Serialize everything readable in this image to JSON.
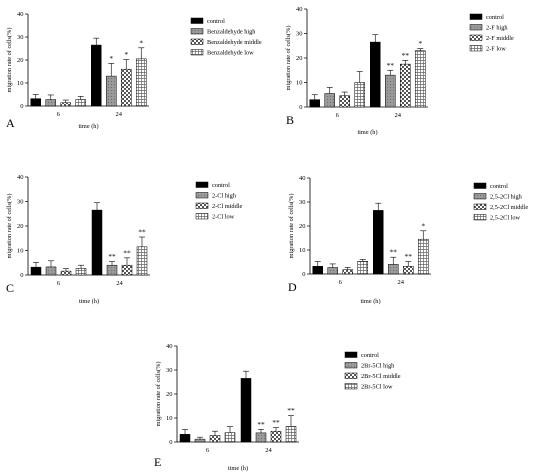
{
  "chart_data": [
    {
      "type": "bar",
      "panel_label": "A",
      "categories": [
        "6",
        "24"
      ],
      "xlabel": "time (h)",
      "ylabel": "migration rate of cells(%)",
      "ylim": [
        0,
        40
      ],
      "yticks": [
        "0",
        "10",
        "20",
        "30",
        "40"
      ],
      "legend_position": "right",
      "series": [
        {
          "name": "control",
          "values": [
            3.2,
            26.5
          ],
          "errors": [
            1.8,
            3.0
          ],
          "sig": [
            "",
            ""
          ]
        },
        {
          "name": "Benzaldehyde high",
          "values": [
            2.8,
            13.0
          ],
          "errors": [
            2.0,
            5.5
          ],
          "sig": [
            "",
            "*"
          ]
        },
        {
          "name": "Benzaldehyde middle",
          "values": [
            1.4,
            16.0
          ],
          "errors": [
            1.2,
            4.2
          ],
          "sig": [
            "",
            "*"
          ]
        },
        {
          "name": "Benzaldehyde low",
          "values": [
            2.8,
            20.5
          ],
          "errors": [
            1.4,
            4.8
          ],
          "sig": [
            "",
            "*"
          ]
        }
      ]
    },
    {
      "type": "bar",
      "panel_label": "B",
      "categories": [
        "6",
        "24"
      ],
      "xlabel": "time (h)",
      "ylabel": "migration rate of cells(%)",
      "ylim": [
        0,
        40
      ],
      "yticks": [
        "0",
        "10",
        "20",
        "30",
        "40"
      ],
      "legend_position": "right",
      "series": [
        {
          "name": "control",
          "values": [
            3.0,
            26.5
          ],
          "errors": [
            2.0,
            3.0
          ],
          "sig": [
            "",
            ""
          ]
        },
        {
          "name": "2-F high",
          "values": [
            5.5,
            13.0
          ],
          "errors": [
            2.5,
            2.0
          ],
          "sig": [
            "",
            "**"
          ]
        },
        {
          "name": "2-F middle",
          "values": [
            4.6,
            17.5
          ],
          "errors": [
            1.5,
            1.5
          ],
          "sig": [
            "",
            "**"
          ]
        },
        {
          "name": "2-F low",
          "values": [
            10.0,
            23.0
          ],
          "errors": [
            4.5,
            0.8
          ],
          "sig": [
            "",
            "*"
          ]
        }
      ]
    },
    {
      "type": "bar",
      "panel_label": "C",
      "categories": [
        "6",
        "24"
      ],
      "xlabel": "time (h)",
      "ylabel": "migration rate of cells(%)",
      "ylim": [
        0,
        40
      ],
      "yticks": [
        "0",
        "10",
        "20",
        "30",
        "40"
      ],
      "legend_position": "right",
      "series": [
        {
          "name": "control",
          "values": [
            3.2,
            26.5
          ],
          "errors": [
            2.0,
            3.0
          ],
          "sig": [
            "",
            ""
          ]
        },
        {
          "name": "2-Cl high",
          "values": [
            3.3,
            4.0
          ],
          "errors": [
            2.5,
            1.5
          ],
          "sig": [
            "",
            "**"
          ]
        },
        {
          "name": "2-Cl middle",
          "values": [
            1.6,
            4.0
          ],
          "errors": [
            1.0,
            3.0
          ],
          "sig": [
            "",
            "**"
          ]
        },
        {
          "name": "2-Cl low",
          "values": [
            2.7,
            11.5
          ],
          "errors": [
            1.3,
            4.0
          ],
          "sig": [
            "",
            "**"
          ]
        }
      ]
    },
    {
      "type": "bar",
      "panel_label": "D",
      "categories": [
        "6",
        "24"
      ],
      "xlabel": "time (h)",
      "ylabel": "migration rate of cells(%)",
      "ylim": [
        0,
        40
      ],
      "yticks": [
        "0",
        "10",
        "20",
        "30",
        "40"
      ],
      "legend_position": "right",
      "series": [
        {
          "name": "control",
          "values": [
            3.2,
            26.5
          ],
          "errors": [
            2.0,
            3.0
          ],
          "sig": [
            "",
            ""
          ]
        },
        {
          "name": "2,5-2Cl high",
          "values": [
            2.7,
            4.0
          ],
          "errors": [
            1.5,
            3.0
          ],
          "sig": [
            "",
            "**"
          ]
        },
        {
          "name": "2,5-2Cl middle",
          "values": [
            1.8,
            3.2
          ],
          "errors": [
            1.0,
            2.0
          ],
          "sig": [
            "",
            "**"
          ]
        },
        {
          "name": "2,5-2Cl low",
          "values": [
            5.3,
            14.5
          ],
          "errors": [
            0.8,
            3.5
          ],
          "sig": [
            "",
            "*"
          ]
        }
      ]
    },
    {
      "type": "bar",
      "panel_label": "E",
      "categories": [
        "6",
        "24"
      ],
      "xlabel": "time (h)",
      "ylabel": "migration rate of cells(%)",
      "ylim": [
        0,
        40
      ],
      "yticks": [
        "0",
        "10",
        "20",
        "30",
        "40"
      ],
      "legend_position": "right",
      "series": [
        {
          "name": "control",
          "values": [
            3.2,
            26.5
          ],
          "errors": [
            2.0,
            3.0
          ],
          "sig": [
            "",
            ""
          ]
        },
        {
          "name": "2Br-5Cl high",
          "values": [
            1.2,
            3.8
          ],
          "errors": [
            0.8,
            1.5
          ],
          "sig": [
            "",
            "**"
          ]
        },
        {
          "name": "2Br-5Cl middle",
          "values": [
            2.7,
            4.5
          ],
          "errors": [
            1.8,
            1.5
          ],
          "sig": [
            "",
            "**"
          ]
        },
        {
          "name": "2Br-5Cl low",
          "values": [
            3.9,
            6.5
          ],
          "errors": [
            2.5,
            4.5
          ],
          "sig": [
            "",
            "**"
          ]
        }
      ]
    }
  ]
}
